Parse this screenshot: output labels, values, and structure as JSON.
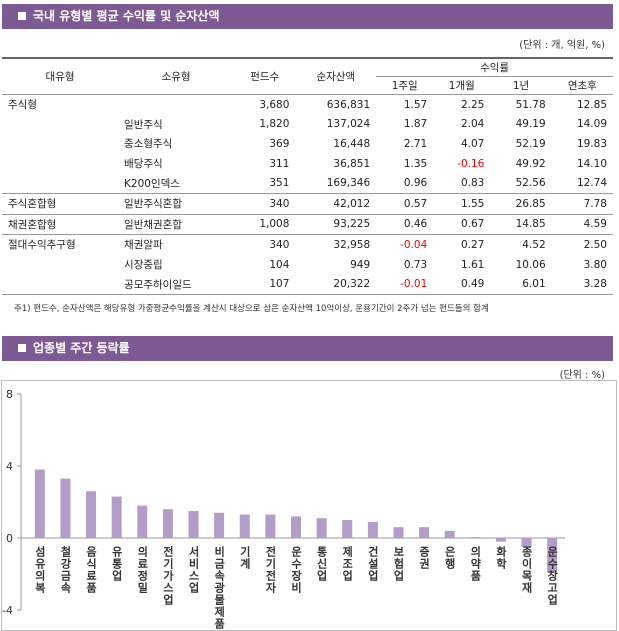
{
  "section1": {
    "title": "국내 유형별 평균 수익률 및 순자산액",
    "unit": "(단위 : 개, 억원, %)",
    "table": {
      "columns": [
        "대유형",
        "소유형",
        "펀드수",
        "순자산액"
      ],
      "group": "수익률",
      "subcolumns": [
        "1주일",
        "1개월",
        "1년",
        "연초후"
      ],
      "rows": [
        [
          "주식형",
          null,
          "3,680",
          "636,831",
          "1.57",
          "2.25",
          "51.78",
          "12.85"
        ],
        [
          null,
          "일반주식",
          "1,820",
          "137,024",
          "1.87",
          "2.04",
          "49.19",
          "14.09"
        ],
        [
          null,
          "중소형주식",
          "369",
          "16,448",
          "2.71",
          "4.07",
          "52.19",
          "19.83"
        ],
        [
          null,
          "배당주식",
          "311",
          "36,851",
          "1.35",
          "-0.16",
          "49.92",
          "14.10"
        ],
        [
          null,
          "K200인덱스",
          "351",
          "169,346",
          "0.96",
          "0.83",
          "52.56",
          "12.74"
        ],
        [
          "주식혼합형",
          "일반주식혼합",
          "340",
          "42,012",
          "0.57",
          "1.55",
          "26.85",
          "7.78"
        ],
        [
          "채권혼합형",
          "일반채권혼합",
          "1,008",
          "93,225",
          "0.46",
          "0.67",
          "14.85",
          "4.59"
        ],
        [
          "절대수익추구형",
          "채권알파",
          "340",
          "32,958",
          "-0.04",
          "0.27",
          "4.52",
          "2.50"
        ],
        [
          null,
          "시장중립",
          "104",
          "949",
          "0.73",
          "1.61",
          "10.06",
          "3.80"
        ],
        [
          null,
          "공모주하이일드",
          "107",
          "20,322",
          "-0.01",
          "0.49",
          "6.01",
          "3.28"
        ]
      ]
    },
    "note": "주1) 펀드수, 순자산액은 해당유형 가중평균수익률을 계산시 대상으로 삼은 순자산액 10억이상, 운용기간이 2주가 넘는 펀드들의 합계"
  },
  "chart_data": {
    "type": "bar",
    "title": "업종별 주간 등락률",
    "unit": "(단위 : %)",
    "categories": [
      "섬유의복",
      "철강금속",
      "음식료품",
      "유통업",
      "의료정밀",
      "전기가스업",
      "서비스업",
      "비금속광물제품",
      "기계",
      "전기전자",
      "운수장비",
      "통신업",
      "제조업",
      "건설업",
      "보험업",
      "증권",
      "은행",
      "의약품",
      "화학",
      "종이목재",
      "운수창고업"
    ],
    "values": [
      3.8,
      3.3,
      2.6,
      2.3,
      1.8,
      1.6,
      1.5,
      1.4,
      1.3,
      1.3,
      1.2,
      1.1,
      1.0,
      0.9,
      0.6,
      0.6,
      0.4,
      0.05,
      -0.2,
      -0.5,
      -1.9
    ],
    "color": "#b49cc8",
    "ylim": [
      -4,
      8
    ],
    "yticks": [
      -4,
      0,
      4,
      8
    ]
  }
}
